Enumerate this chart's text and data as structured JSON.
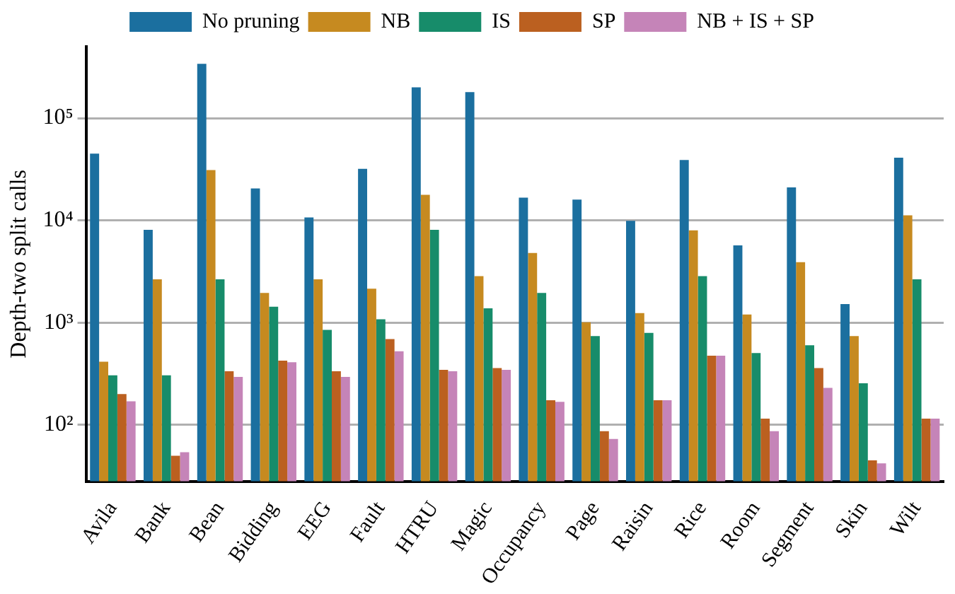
{
  "chart_data": {
    "type": "bar",
    "ylabel": "Depth-two split calls",
    "categories": [
      "Avila",
      "Bank",
      "Bean",
      "Bidding",
      "EEG",
      "Fault",
      "HTRU",
      "Magic",
      "Occupancy",
      "Page",
      "Raisin",
      "Rice",
      "Room",
      "Segment",
      "Skin",
      "Wilt"
    ],
    "series": [
      {
        "name": "No pruning",
        "color": "#1b6f9f",
        "values": [
          45000,
          8100,
          340000,
          20500,
          10700,
          32000,
          200000,
          180000,
          16700,
          16000,
          9900,
          39000,
          5700,
          21000,
          1520,
          41000
        ]
      },
      {
        "name": "NB",
        "color": "#c68a20",
        "values": [
          415,
          2650,
          31000,
          1950,
          2650,
          2150,
          17800,
          2850,
          4800,
          1010,
          1240,
          8000,
          1200,
          3900,
          740,
          11200
        ]
      },
      {
        "name": "IS",
        "color": "#178c6a",
        "values": [
          305,
          305,
          2650,
          1430,
          850,
          1080,
          8100,
          1380,
          1950,
          740,
          795,
          2850,
          505,
          600,
          255,
          2650
        ]
      },
      {
        "name": "SP",
        "color": "#bb6020",
        "values": [
          200,
          50,
          335,
          425,
          335,
          690,
          345,
          360,
          174,
          87,
          174,
          475,
          115,
          360,
          45,
          115
        ]
      },
      {
        "name": "NB + IS + SP",
        "color": "#c584b8",
        "values": [
          170,
          54,
          295,
          410,
          295,
          525,
          335,
          345,
          168,
          73,
          174,
          475,
          87,
          230,
          42,
          115
        ]
      }
    ],
    "log": true,
    "ylim": [
      28,
      500000
    ],
    "yticks": [
      {
        "value": 100,
        "label": "10²"
      },
      {
        "value": 1000,
        "label": "10³"
      },
      {
        "value": 10000,
        "label": "10⁴"
      },
      {
        "value": 100000,
        "label": "10⁵"
      }
    ],
    "grid": "y",
    "legend": "top"
  }
}
